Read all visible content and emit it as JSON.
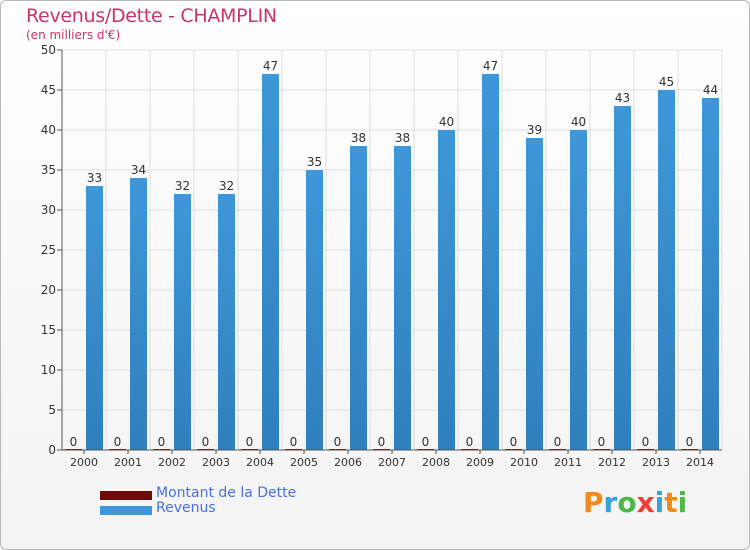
{
  "title": "Revenus/Dette - CHAMPLIN",
  "subtitle": "(en milliers d'€)",
  "logo": {
    "text": "Proxiti",
    "letter_colors": [
      "#f08a1c",
      "#3aa0d8",
      "#4cb848",
      "#ef3e36",
      "#3aa0d8",
      "#f08a1c",
      "#4cb848"
    ]
  },
  "colors": {
    "dette": "#6e0b0b",
    "revenus": "#3f97d9",
    "revenus_dark": "#2f7fbd",
    "axis_text": "#333333",
    "grid": "#dddddd"
  },
  "chart_data": {
    "type": "bar",
    "title": "Revenus/Dette - CHAMPLIN",
    "subtitle": "(en milliers d'€)",
    "categories": [
      "2000",
      "2001",
      "2002",
      "2003",
      "2004",
      "2005",
      "2006",
      "2007",
      "2008",
      "2009",
      "2010",
      "2011",
      "2012",
      "2013",
      "2014"
    ],
    "series": [
      {
        "name": "Montant de la Dette",
        "values": [
          0,
          0,
          0,
          0,
          0,
          0,
          0,
          0,
          0,
          0,
          0,
          0,
          0,
          0,
          0
        ]
      },
      {
        "name": "Revenus",
        "values": [
          33,
          34,
          32,
          32,
          47,
          35,
          38,
          38,
          40,
          47,
          39,
          40,
          43,
          45,
          44
        ]
      }
    ],
    "ylim": [
      0,
      50
    ],
    "yticks": [
      0,
      5,
      10,
      15,
      20,
      25,
      30,
      35,
      40,
      45,
      50
    ],
    "grid": true,
    "legend_position": "bottom-left"
  }
}
